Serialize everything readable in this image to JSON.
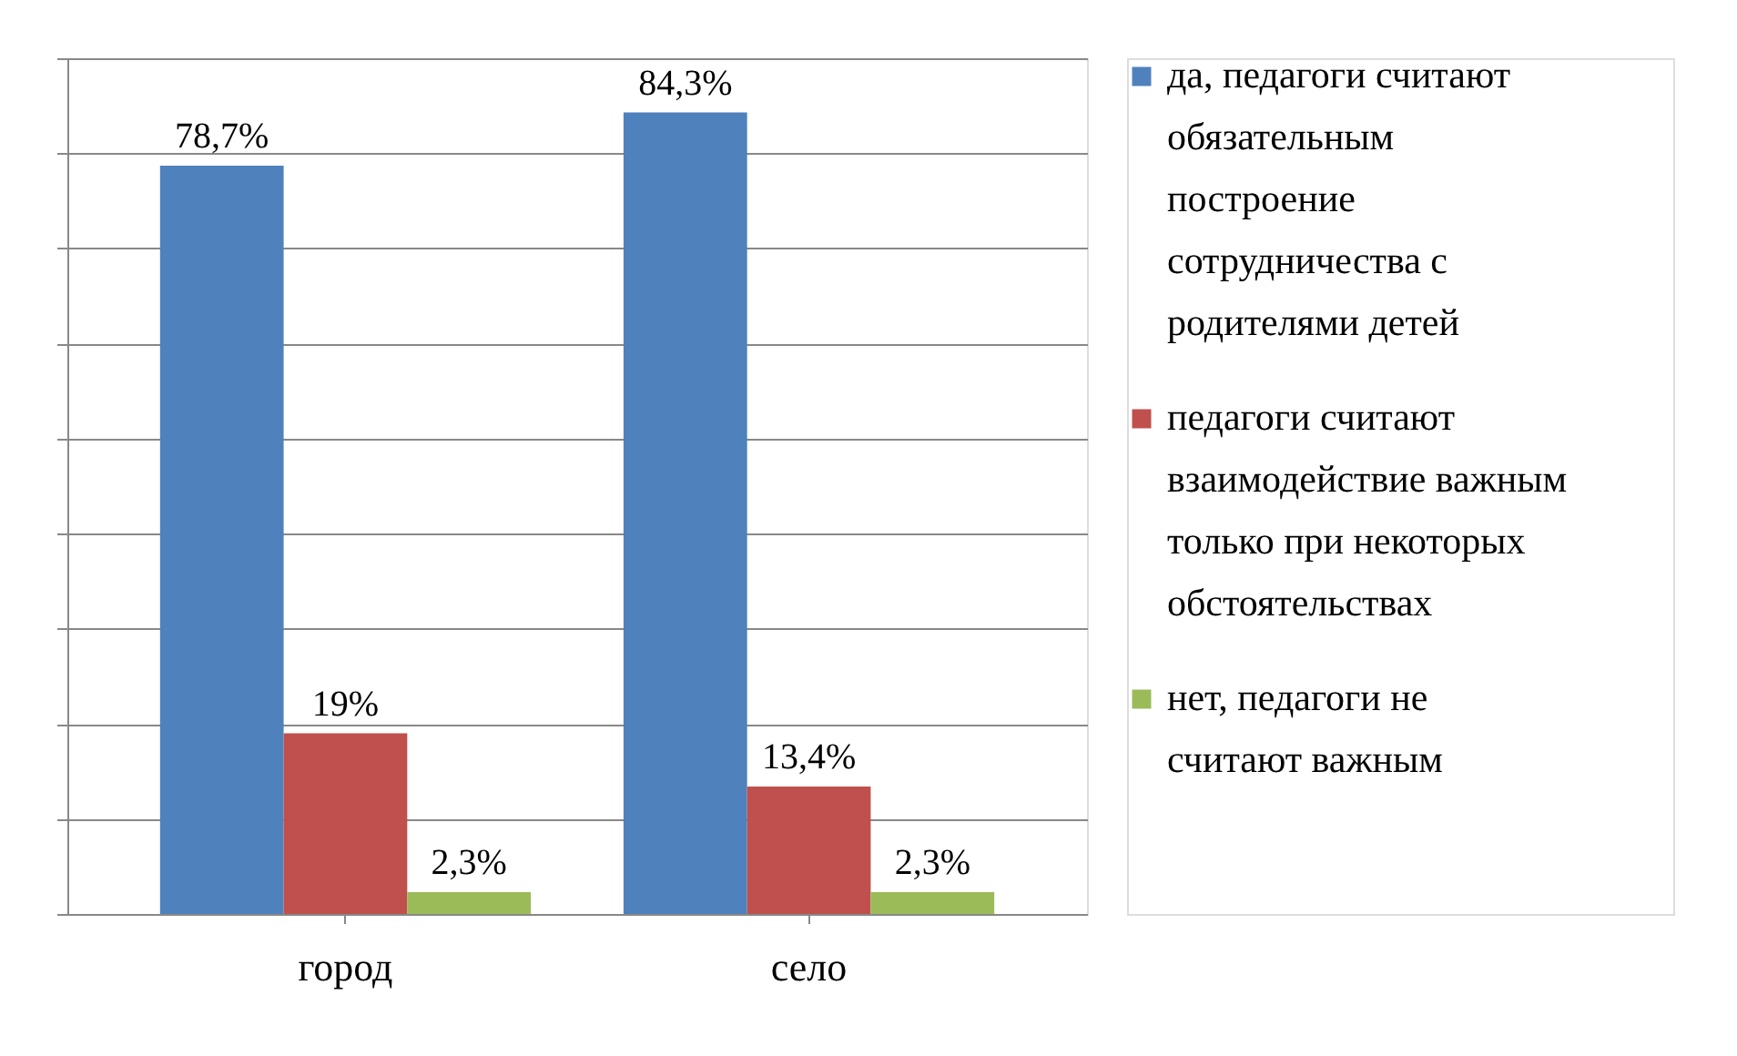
{
  "chart_data": {
    "type": "bar",
    "categories": [
      "город",
      "село"
    ],
    "series": [
      {
        "name": "да, педагоги считают обязательным построение сотрудничества с родителями детей",
        "color": "#4f81bd",
        "values": [
          78.7,
          84.3
        ],
        "value_labels": [
          "78,7%",
          "84,3%"
        ]
      },
      {
        "name": "педагоги считают взаимодействие важным только при некоторых обстоятельствах",
        "color": "#c0504d",
        "values": [
          19,
          13.4
        ],
        "value_labels": [
          "19%",
          "13,4%"
        ]
      },
      {
        "name": "нет, педагоги не считают важным",
        "color": "#9bbb59",
        "values": [
          2.3,
          2.3
        ],
        "value_labels": [
          "2,3%",
          "2,3%"
        ]
      }
    ],
    "ylim": [
      0,
      90
    ],
    "yticks": [
      {
        "value": 0,
        "label": null
      },
      {
        "value": 10,
        "label": null
      },
      {
        "value": 20,
        "label": null
      },
      {
        "value": 30,
        "label": null
      },
      {
        "value": 40,
        "label": null
      },
      {
        "value": 50,
        "label": null
      },
      {
        "value": 60,
        "label": null
      },
      {
        "value": 70,
        "label": null
      },
      {
        "value": 80,
        "label": null
      },
      {
        "value": 90,
        "label": null
      }
    ],
    "tick_labels": "x",
    "grid": "y",
    "legend": "right"
  }
}
